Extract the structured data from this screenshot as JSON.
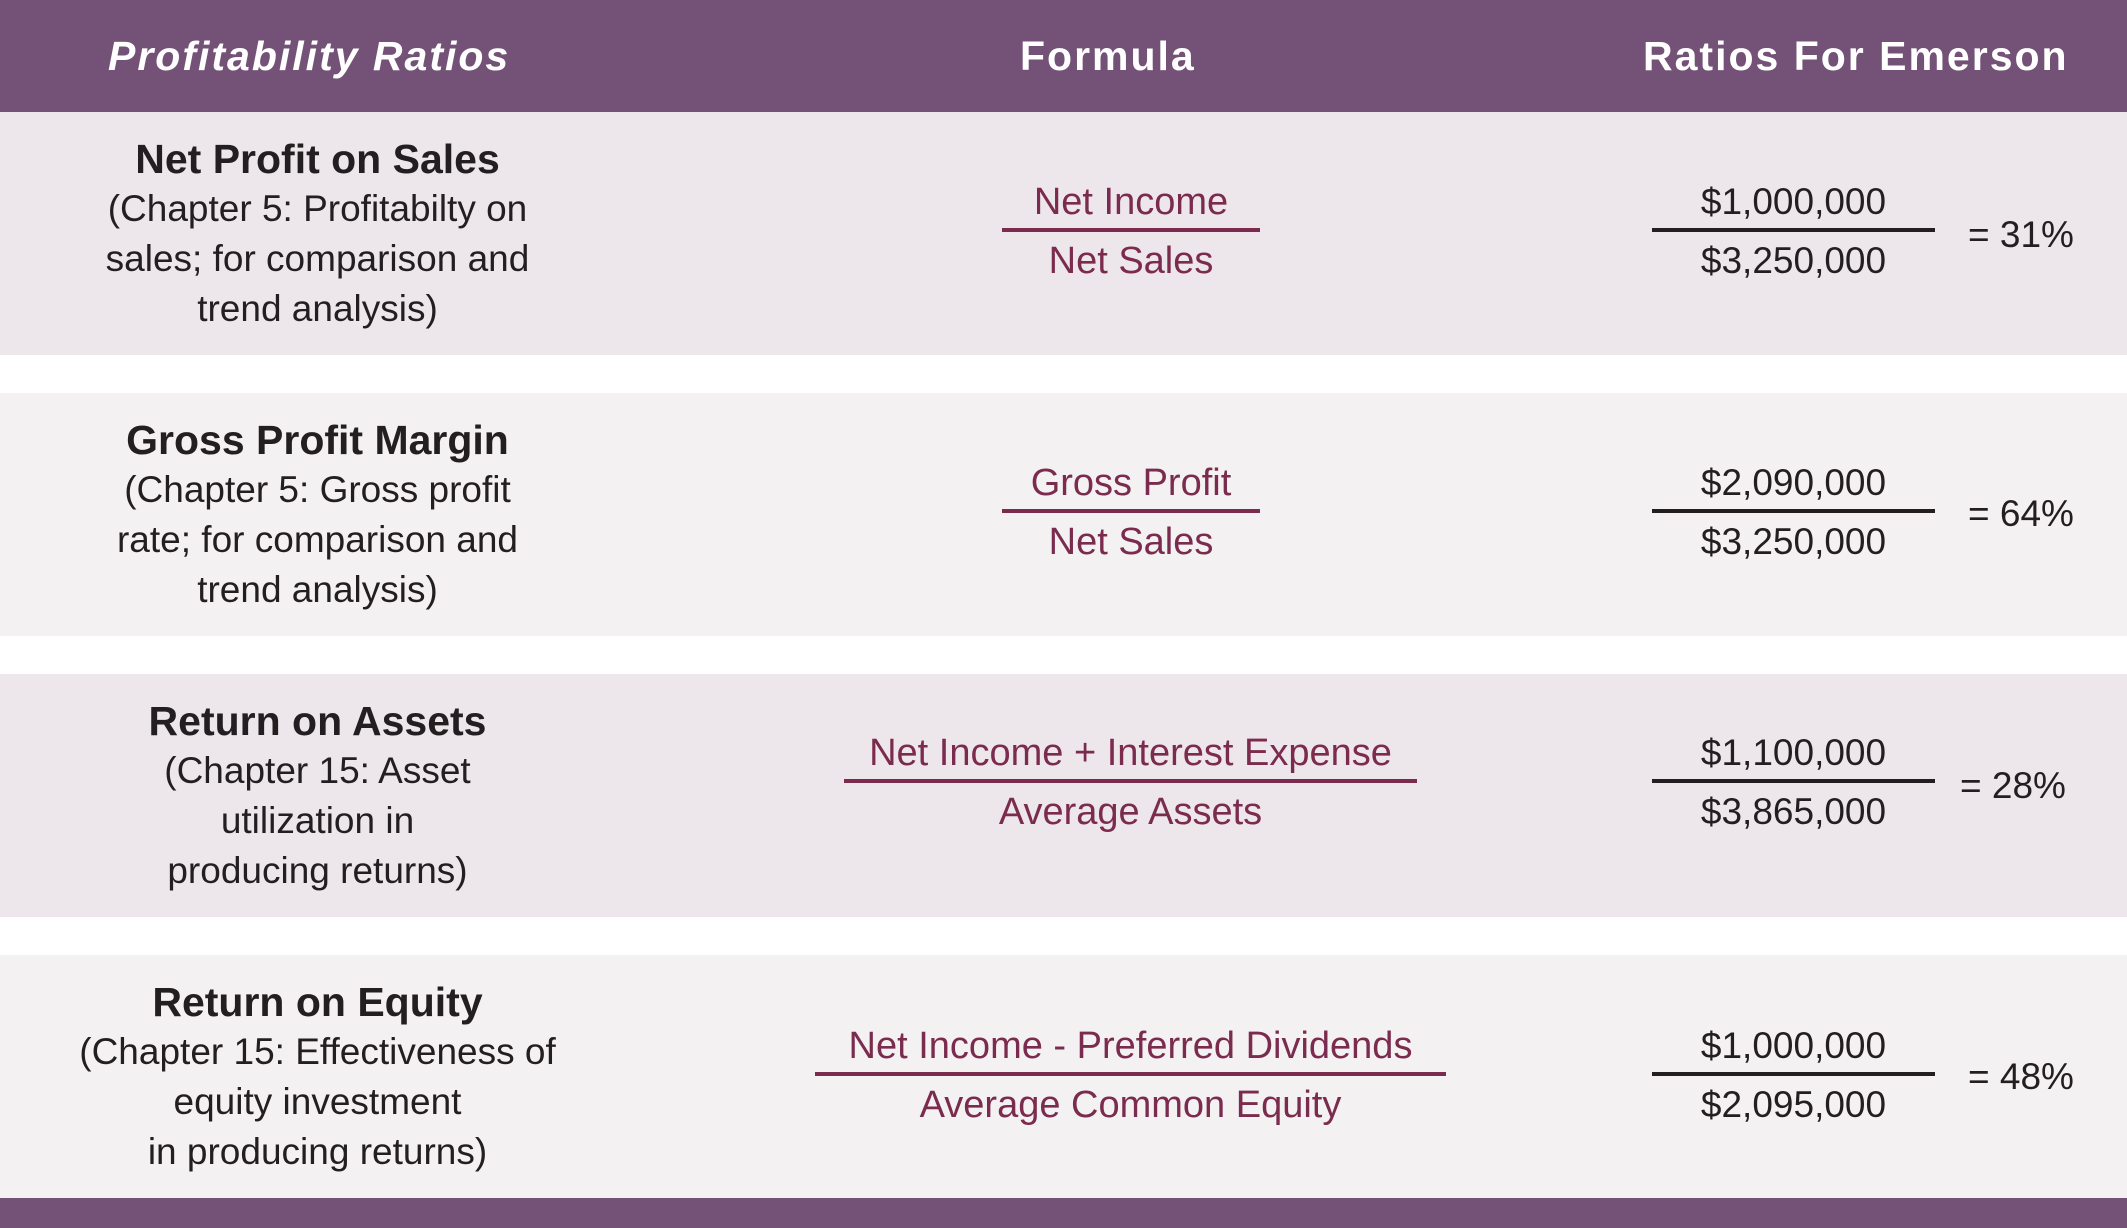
{
  "header": {
    "col_ratio": "Profitability Ratios",
    "col_formula": "Formula",
    "col_emerson": "Ratios For Emerson"
  },
  "rows": [
    {
      "title": "Net Profit on Sales",
      "desc": [
        "(Chapter 5: Profitabilty on",
        "sales;  for comparison and",
        "trend analysis)"
      ],
      "formula_num": "Net Income",
      "formula_den": "Net Sales",
      "value_num": "$1,000,000",
      "value_den": "$3,250,000",
      "result": "= 31%"
    },
    {
      "title": "Gross Profit Margin",
      "desc": [
        "(Chapter 5: Gross profit",
        "rate; for comparison and",
        "trend analysis)"
      ],
      "formula_num": "Gross Profit",
      "formula_den": "Net Sales",
      "value_num": "$2,090,000",
      "value_den": "$3,250,000",
      "result": "= 64%"
    },
    {
      "title": "Return on Assets",
      "desc": [
        "(Chapter 15: Asset",
        "utilization in",
        "producing returns)"
      ],
      "formula_num": "Net Income + Interest Expense",
      "formula_den": "Average Assets",
      "value_num": "$1,100,000",
      "value_den": "$3,865,000",
      "result": "= 28%"
    },
    {
      "title": "Return on Equity",
      "desc": [
        "(Chapter 15: Effectiveness of",
        "equity investment",
        "in producing returns)"
      ],
      "formula_num": "Net Income - Preferred Dividends",
      "formula_den": "Average Common Equity",
      "value_num": "$1,000,000",
      "value_den": "$2,095,000",
      "result": "= 48%"
    }
  ],
  "colors": {
    "header_bg": "#745277",
    "formula_text": "#7a2b4e",
    "body_text": "#231f20",
    "row_odd_bg": "#ede6ea",
    "row_even_bg": "#f3f1f2"
  }
}
